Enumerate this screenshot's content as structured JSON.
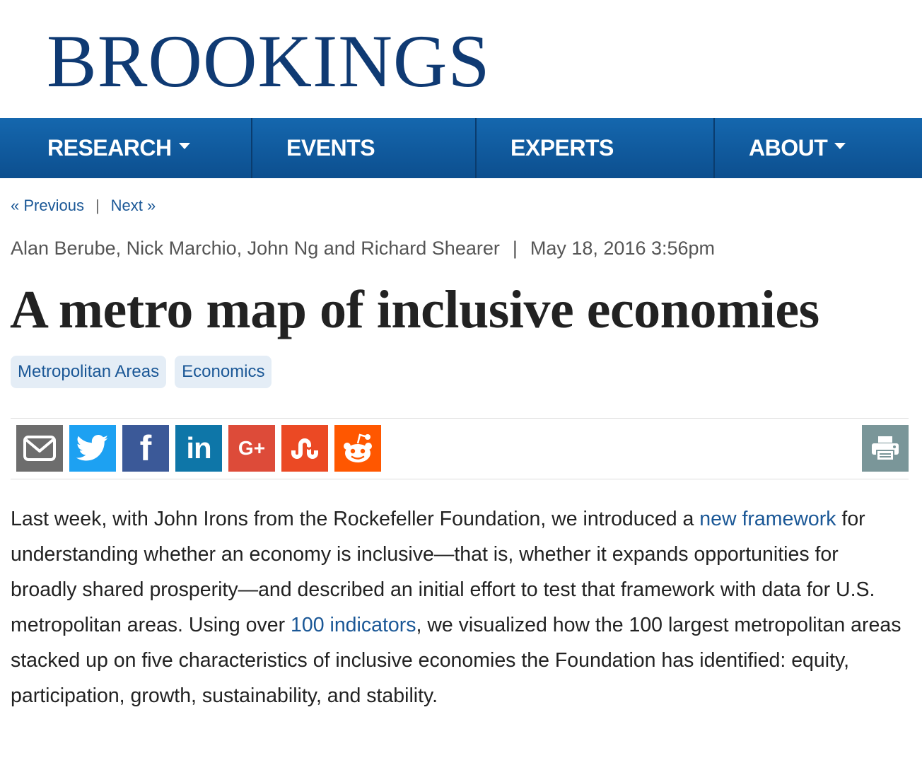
{
  "site": {
    "logo_text": "BROOKINGS"
  },
  "nav": {
    "items": [
      {
        "label": "RESEARCH",
        "has_dropdown": true
      },
      {
        "label": "EVENTS",
        "has_dropdown": false
      },
      {
        "label": "EXPERTS",
        "has_dropdown": false
      },
      {
        "label": "ABOUT",
        "has_dropdown": true
      }
    ]
  },
  "pager": {
    "previous_label": "« Previous",
    "separator": "|",
    "next_label": "Next »"
  },
  "article": {
    "authors": "Alan Berube, Nick Marchio, John Ng and Richard Shearer",
    "byline_separator": "|",
    "date": "May 18, 2016 3:56pm",
    "title": "A metro map of inclusive economies",
    "tags": [
      "Metropolitan Areas",
      "Economics"
    ],
    "body": {
      "p1_a": "Last week, with John Irons from the Rockefeller Foundation, we introduced a ",
      "link1": "new framework",
      "p1_b": " for understanding whether an economy is inclusive—that is, whether it expands opportunities for broadly shared prosperity—and described an initial effort to test that framework with data for U.S. metropolitan areas. Using over ",
      "link2": "100 indicators",
      "p1_c": ", we visualized how the 100 largest metropolitan areas stacked up on five characteristics of inclusive economies the Foundation has identified: equity, participation, growth, sustainability, and stability."
    }
  },
  "share": {
    "buttons": [
      {
        "icon": "email-icon",
        "color": "#6d6d6d"
      },
      {
        "icon": "twitter-icon",
        "color": "#1da1f2"
      },
      {
        "icon": "facebook-icon",
        "color": "#3b5998"
      },
      {
        "icon": "linkedin-icon",
        "color": "#0e76a8"
      },
      {
        "icon": "google-plus-icon",
        "color": "#dd4b39"
      },
      {
        "icon": "stumbleupon-icon",
        "color": "#eb4924"
      },
      {
        "icon": "reddit-icon",
        "color": "#ff5700"
      }
    ],
    "print_icon": "print-icon",
    "google_glyph": "G+",
    "facebook_glyph": "f",
    "linkedin_glyph": "in"
  },
  "colors": {
    "brand": "#0f3a73",
    "nav_bg": "#1567ae",
    "link": "#1a5796",
    "tag_bg": "#e4edf6",
    "print_bg": "#7a9699"
  }
}
